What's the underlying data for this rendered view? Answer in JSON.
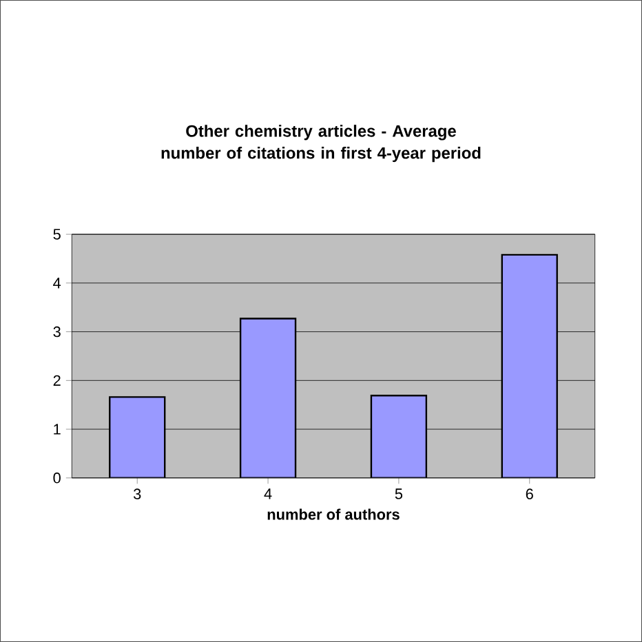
{
  "chart_data": {
    "type": "bar",
    "title": "Other chemistry articles - Average number of citations in first 4-year period",
    "xlabel": "number of authors",
    "categories": [
      "3",
      "4",
      "5",
      "6"
    ],
    "values": [
      1.66,
      3.27,
      1.69,
      4.58
    ],
    "color": "#9999ff",
    "ylim": [
      0,
      5
    ],
    "yticks": [
      0,
      1,
      2,
      3,
      4,
      5
    ],
    "grid": "y"
  }
}
